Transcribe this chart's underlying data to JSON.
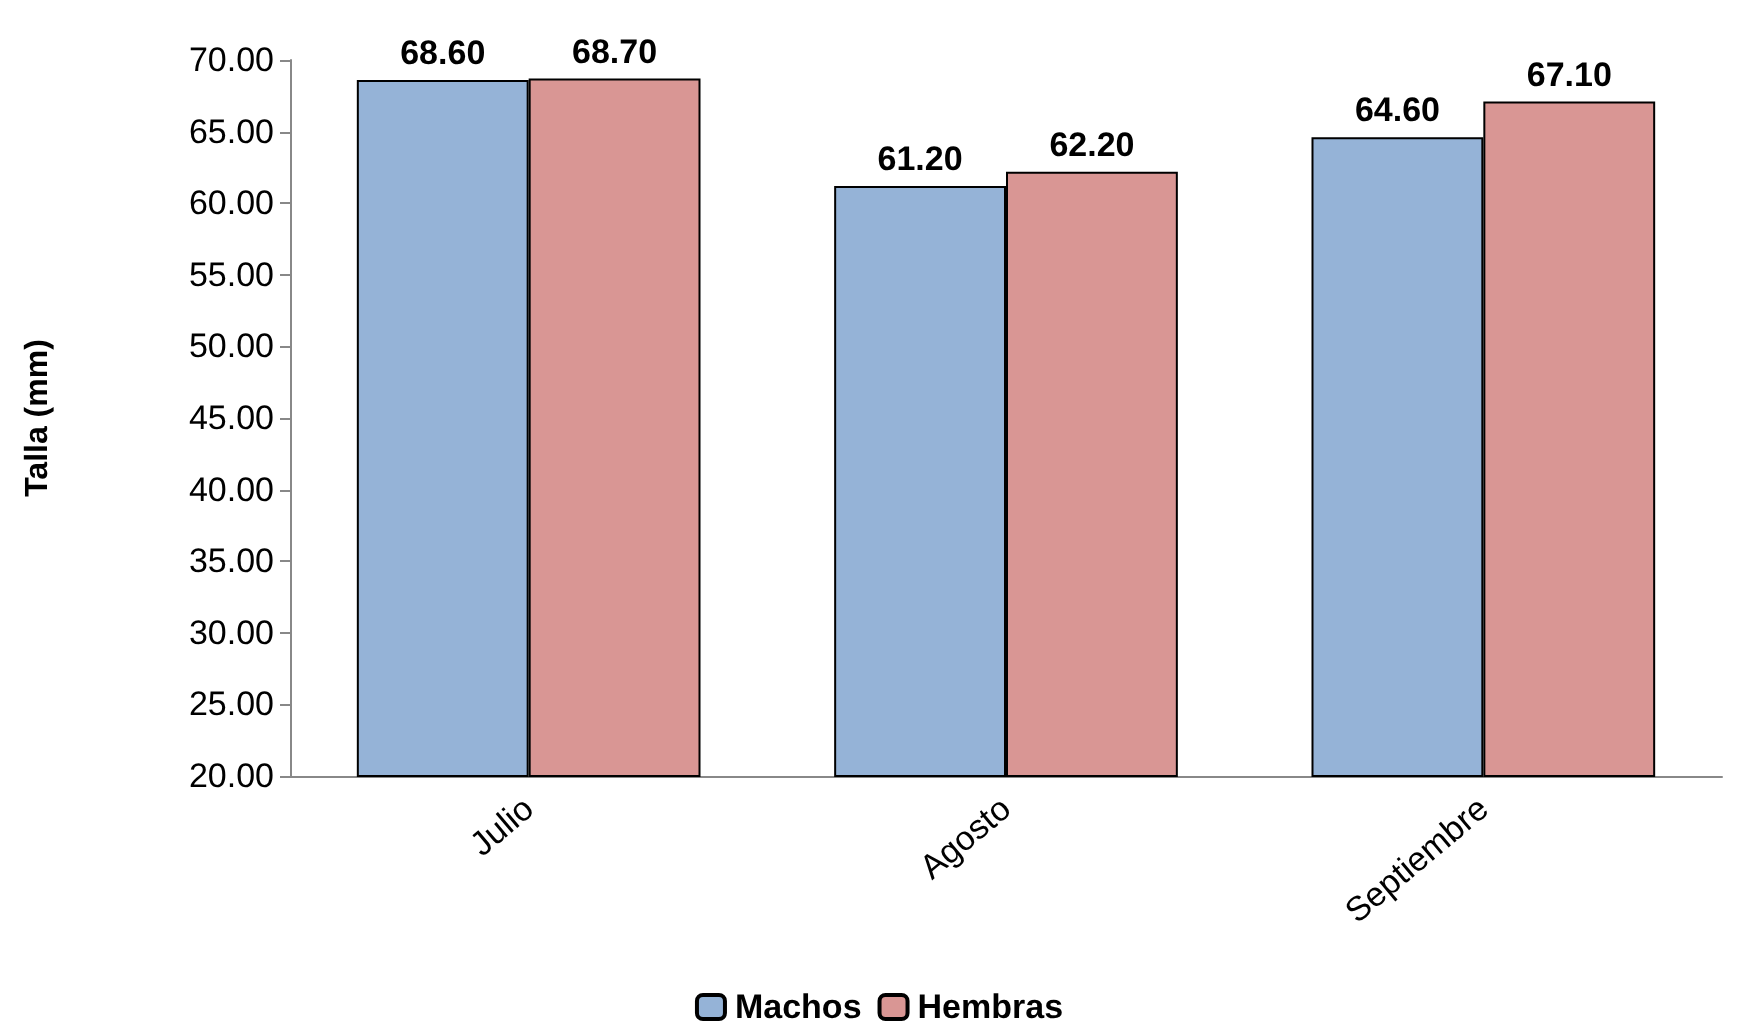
{
  "chart_data": {
    "type": "bar",
    "ylabel": "Talla (mm)",
    "categories": [
      "Julio",
      "Agosto",
      "Septiembre"
    ],
    "series": [
      {
        "name": "Machos",
        "color": "#95b3d7",
        "values": [
          68.6,
          61.2,
          64.6
        ],
        "value_labels": [
          "68.60",
          "61.20",
          "64.60"
        ]
      },
      {
        "name": "Hembras",
        "color": "#d99694",
        "values": [
          68.7,
          62.2,
          67.1
        ],
        "value_labels": [
          "68.70",
          "62.20",
          "67.10"
        ]
      }
    ],
    "ylim": [
      20,
      70
    ],
    "yticks": [
      {
        "value": 20,
        "label": "20.00"
      },
      {
        "value": 25,
        "label": "25.00"
      },
      {
        "value": 30,
        "label": "30.00"
      },
      {
        "value": 35,
        "label": "35.00"
      },
      {
        "value": 40,
        "label": "40.00"
      },
      {
        "value": 45,
        "label": "45.00"
      },
      {
        "value": 50,
        "label": "50.00"
      },
      {
        "value": 55,
        "label": "55.00"
      },
      {
        "value": 60,
        "label": "60.00"
      },
      {
        "value": 65,
        "label": "65.00"
      },
      {
        "value": 70,
        "label": "70.00"
      }
    ],
    "grid": false,
    "legend": "bottom"
  }
}
